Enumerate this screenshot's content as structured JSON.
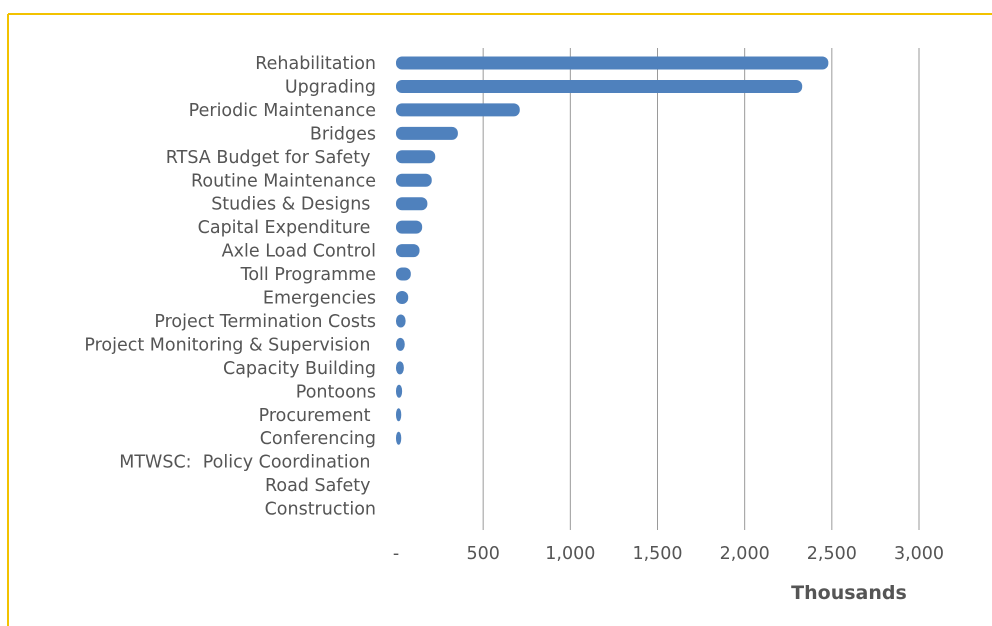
{
  "colors": {
    "frame_border": "#f2c200",
    "bar": "#4f81bd",
    "grid": "#9a9a9a",
    "text": "#555555"
  },
  "chart_data": {
    "type": "bar",
    "orientation": "horizontal",
    "categories": [
      "Rehabilitation",
      "Upgrading",
      "Periodic Maintenance",
      "Bridges",
      "RTSA Budget for Safety ",
      "Routine Maintenance",
      "Studies & Designs ",
      "Capital Expenditure ",
      "Axle Load Control",
      "Toll Programme",
      "Emergencies",
      "Project Termination Costs",
      "Project Monitoring & Supervision ",
      "Capacity Building",
      "Pontoons",
      "Procurement ",
      "Conferencing",
      "MTWSC:  Policy Coordination ",
      "Road Safety ",
      "Construction"
    ],
    "values": [
      2480,
      2330,
      710,
      355,
      225,
      205,
      180,
      150,
      135,
      85,
      70,
      55,
      50,
      45,
      35,
      30,
      30,
      0,
      0,
      0
    ],
    "xlim": [
      0,
      3000
    ],
    "xticks": [
      0,
      500,
      1000,
      1500,
      2000,
      2500,
      3000
    ],
    "xtick_labels": [
      "-",
      "500",
      "1,000",
      "1,500",
      "2,000",
      "2,500",
      "3,000"
    ],
    "xlabel": "Thousands",
    "ylabel": "",
    "title": "",
    "grid": "vertical",
    "legend": "none"
  }
}
